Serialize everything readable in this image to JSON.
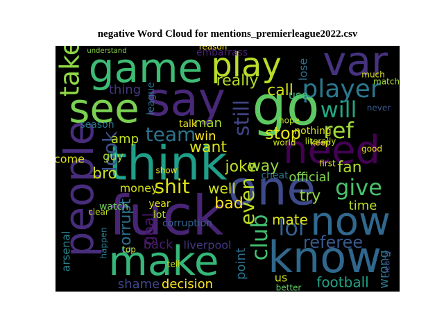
{
  "chart_data": {
    "type": "wordcloud",
    "title": "negative Word Cloud for mentions_premierleague2022.csv",
    "words": [
      {
        "text": "game",
        "color": "#3dbc74"
      },
      {
        "text": "play",
        "color": "#b8de29"
      },
      {
        "text": "var",
        "color": "#46327e"
      },
      {
        "text": "say",
        "color": "#482878"
      },
      {
        "text": "see",
        "color": "#7ad151"
      },
      {
        "text": "go",
        "color": "#5ec962"
      },
      {
        "text": "think",
        "color": "#1f9e89"
      },
      {
        "text": "need",
        "color": "#440154"
      },
      {
        "text": "people",
        "color": "#472d7b"
      },
      {
        "text": "one",
        "color": "#3e4989"
      },
      {
        "text": "fuck",
        "color": "#482475"
      },
      {
        "text": "now",
        "color": "#31688e"
      },
      {
        "text": "make",
        "color": "#35b779"
      },
      {
        "text": "know",
        "color": "#30678d"
      },
      {
        "text": "take",
        "color": "#8fd744"
      },
      {
        "text": "player",
        "color": "#2a788e"
      },
      {
        "text": "will",
        "color": "#22a884"
      },
      {
        "text": "ref",
        "color": "#a0da39"
      },
      {
        "text": "team",
        "color": "#2c728e"
      },
      {
        "text": "look",
        "color": "#3b528b"
      },
      {
        "text": "shit",
        "color": "#dde318"
      },
      {
        "text": "give",
        "color": "#4ac16d"
      },
      {
        "text": "lol",
        "color": "#355f8d"
      },
      {
        "text": "club",
        "color": "#43bf71"
      },
      {
        "text": "even",
        "color": "#bddf26"
      },
      {
        "text": "referee",
        "color": "#38588c"
      },
      {
        "text": "football",
        "color": "#20a386"
      },
      {
        "text": "want",
        "color": "#d8e219"
      },
      {
        "text": "joke",
        "color": "#c2df23"
      },
      {
        "text": "still",
        "color": "#414487"
      },
      {
        "text": "really",
        "color": "#b5de2b"
      },
      {
        "text": "call",
        "color": "#d0e11c"
      },
      {
        "text": "stop",
        "color": "#e5e419"
      },
      {
        "text": "way",
        "color": "#9bd93c"
      },
      {
        "text": "bro",
        "color": "#c8e020"
      },
      {
        "text": "fan",
        "color": "#b0dd2f"
      },
      {
        "text": "try",
        "color": "#95d840"
      },
      {
        "text": "bad",
        "color": "#fde725"
      },
      {
        "text": "well",
        "color": "#d2e21b"
      },
      {
        "text": "official",
        "color": "#7fd34e"
      },
      {
        "text": "time",
        "color": "#b8de29"
      },
      {
        "text": "mate",
        "color": "#dde318"
      },
      {
        "text": "corrupt",
        "color": "#2d708e"
      },
      {
        "text": "decision",
        "color": "#fde725"
      },
      {
        "text": "shame",
        "color": "#3f4788"
      },
      {
        "text": "liverpool",
        "color": "#453781"
      },
      {
        "text": "point",
        "color": "#2c728e"
      },
      {
        "text": "arsenal",
        "color": "#26828e"
      },
      {
        "text": "goal",
        "color": "#48186a"
      },
      {
        "text": "back",
        "color": "#481f70"
      },
      {
        "text": "amp",
        "color": "#c2df23"
      },
      {
        "text": "thing",
        "color": "#453882"
      },
      {
        "text": "league",
        "color": "#2e6e8e"
      },
      {
        "text": "man",
        "color": "#a8db34"
      },
      {
        "text": "win",
        "color": "#fde725"
      },
      {
        "text": "come",
        "color": "#dfe318"
      },
      {
        "text": "money",
        "color": "#d5e21a"
      },
      {
        "text": "season",
        "color": "#2a788e"
      },
      {
        "text": "lose",
        "color": "#2d708e"
      },
      {
        "text": "use",
        "color": "#3aba76"
      },
      {
        "text": "wrong",
        "color": "#2a788e"
      },
      {
        "text": "us",
        "color": "#cde11d"
      },
      {
        "text": "talk",
        "color": "#f1e51d"
      },
      {
        "text": "guy",
        "color": "#addc30"
      },
      {
        "text": "corruption",
        "color": "#33638d"
      },
      {
        "text": "year",
        "color": "#e2e418"
      },
      {
        "text": "watch",
        "color": "#6ccd5a"
      },
      {
        "text": "tell",
        "color": "#c0df25"
      },
      {
        "text": "cheat",
        "color": "#2c738e"
      },
      {
        "text": "lot",
        "color": "#b8de29"
      },
      {
        "text": "clear",
        "color": "#c5e021"
      },
      {
        "text": "understand",
        "color": "#8bd646"
      },
      {
        "text": "embarrass",
        "color": "#482071"
      },
      {
        "text": "reason",
        "color": "#fde725"
      },
      {
        "text": "match",
        "color": "#a2da37"
      },
      {
        "text": "much",
        "color": "#d8e219"
      },
      {
        "text": "never",
        "color": "#39568c"
      },
      {
        "text": "hope",
        "color": "#bade28"
      },
      {
        "text": "show",
        "color": "#e7e419"
      },
      {
        "text": "nothing",
        "color": "#d5e21a"
      },
      {
        "text": "literally",
        "color": "#c2df23"
      },
      {
        "text": "keep",
        "color": "#dde318"
      },
      {
        "text": "top",
        "color": "#c8e020"
      },
      {
        "text": "happen",
        "color": "#2a788e"
      },
      {
        "text": "clearly",
        "color": "#3b528b"
      },
      {
        "text": "better",
        "color": "#5cc863"
      },
      {
        "text": "world",
        "color": "#cde11d"
      },
      {
        "text": "first",
        "color": "#d0e11c"
      },
      {
        "text": "good",
        "color": "#f1e51d"
      }
    ]
  }
}
